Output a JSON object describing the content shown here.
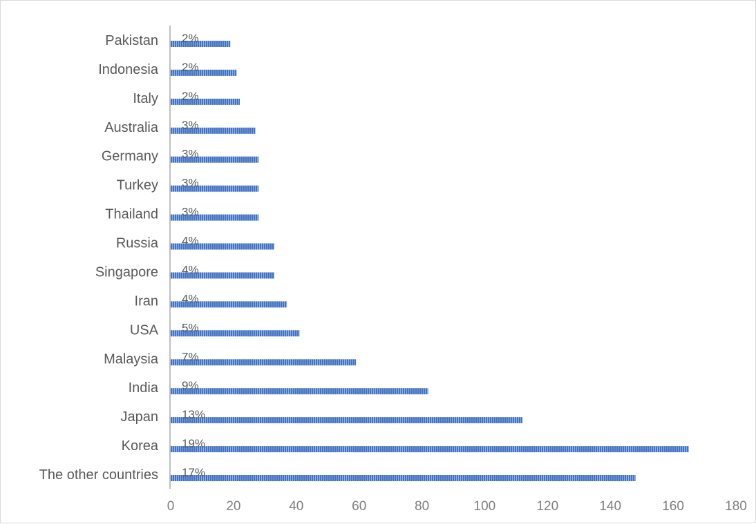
{
  "chart_data": {
    "type": "bar",
    "orientation": "horizontal",
    "categories": [
      "Pakistan",
      "Indonesia",
      "Italy",
      "Australia",
      "Germany",
      "Turkey",
      "Thailand",
      "Russia",
      "Singapore",
      "Iran",
      "USA",
      "Malaysia",
      "India",
      "Japan",
      "Korea",
      "The other countries"
    ],
    "values": [
      19,
      21,
      22,
      27,
      28,
      28,
      28,
      33,
      33,
      37,
      41,
      59,
      82,
      112,
      165,
      148
    ],
    "data_labels": [
      "2%",
      "2%",
      "2%",
      "3%",
      "3%",
      "3%",
      "3%",
      "4%",
      "4%",
      "4%",
      "5%",
      "7%",
      "9%",
      "13%",
      "19%",
      "17%"
    ],
    "x_ticks": [
      "0",
      "20",
      "40",
      "60",
      "80",
      "100",
      "120",
      "140",
      "160",
      "180"
    ],
    "xlim": [
      0,
      180
    ],
    "title": "",
    "xlabel": "",
    "ylabel": "",
    "grid": false,
    "legend": "none",
    "bar_color": "#4472c4"
  }
}
